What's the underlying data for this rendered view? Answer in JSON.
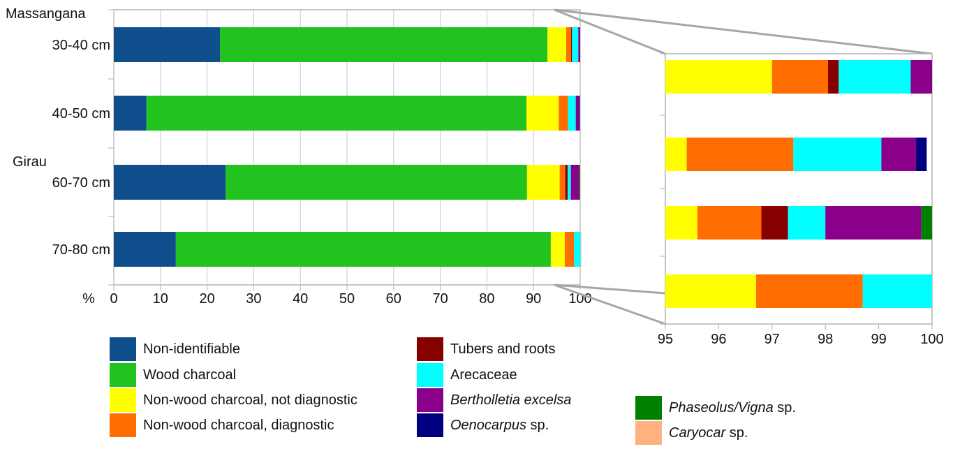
{
  "chart_data": {
    "type": "bar",
    "orientation": "horizontal",
    "stacked": true,
    "group_labels": [
      "Massangana",
      "Girau"
    ],
    "categories": [
      "30-40 cm",
      "40-50 cm",
      "60-70 cm",
      "70-80 cm"
    ],
    "percent_label": "%",
    "main_panel": {
      "xlim": [
        0,
        100
      ],
      "xticks": [
        "0",
        "10",
        "20",
        "30",
        "40",
        "50",
        "60",
        "70",
        "80",
        "90",
        "100"
      ],
      "grid": true
    },
    "zoom_panel": {
      "xlim": [
        95,
        100
      ],
      "xticks": [
        "95",
        "96",
        "97",
        "98",
        "99",
        "100"
      ],
      "grid": false
    },
    "series": [
      {
        "name": "Non-identifiable",
        "color": "#0F4E8C",
        "values": [
          22.8,
          7.0,
          24.0,
          13.3
        ]
      },
      {
        "name": "Wood charcoal",
        "color": "#22C31F",
        "values": [
          70.2,
          81.5,
          64.6,
          80.4
        ]
      },
      {
        "name": "Non-wood charcoal, not diagnostic",
        "color": "#FFFF00",
        "values": [
          4.0,
          6.9,
          7.0,
          3.0
        ]
      },
      {
        "name": "Non-wood charcoal, diagnostic",
        "color": "#FF6D00",
        "values": [
          1.05,
          2.0,
          1.2,
          2.0
        ]
      },
      {
        "name": "Tubers and roots",
        "color": "#870000",
        "values": [
          0.2,
          0.0,
          0.5,
          0.0
        ]
      },
      {
        "name": "Arecaceae",
        "color": "#00FFFF",
        "values": [
          1.35,
          1.65,
          0.7,
          1.4
        ]
      },
      {
        "name": "Bertholletia excelsa",
        "name_parts": [
          "Bertholletia excelsa",
          ""
        ],
        "italic": true,
        "color": "#8B008B",
        "values": [
          0.4,
          0.65,
          1.8,
          0.0
        ]
      },
      {
        "name": "Oenocarpus sp.",
        "name_parts": [
          "Oenocarpus",
          " sp."
        ],
        "italic": true,
        "color": "#000080",
        "values": [
          0.0,
          0.2,
          0.0,
          0.0
        ]
      },
      {
        "name": "Phaseolus/Vigna sp.",
        "name_parts": [
          "Phaseolus/Vigna",
          " sp."
        ],
        "italic": true,
        "color": "#008000",
        "values": [
          0.0,
          0.0,
          0.2,
          0.0
        ]
      },
      {
        "name": "Caryocar sp.",
        "name_parts": [
          "Caryocar",
          " sp."
        ],
        "italic": true,
        "color": "#FFB27F",
        "values": [
          0.0,
          0.0,
          0.0,
          0.15
        ]
      }
    ]
  }
}
